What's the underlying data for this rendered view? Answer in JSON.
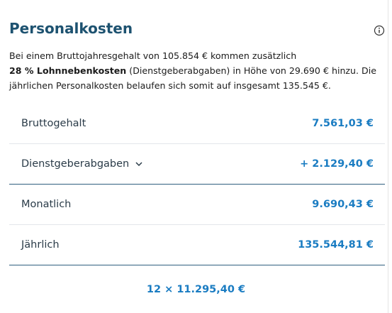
{
  "header": {
    "title": "Personalkosten"
  },
  "intro": {
    "text_before": "Bei einem Bruttojahresgehalt von 105.854 € kommen zusätzlich",
    "bold": "28 % Lohnnebenkosten",
    "text_after": "(Dienstgeberabgaben) in Höhe von 29.690 € hinzu. Die jährlichen Personalkosten belaufen sich somit auf insgesamt 135.545 €."
  },
  "rows": [
    {
      "label": "Bruttogehalt",
      "value": "7.561,03 €"
    },
    {
      "label": "Dienstgeberabgaben",
      "value": "+ 2.129,40 €"
    },
    {
      "label": "Monatlich",
      "value": "9.690,43 €"
    },
    {
      "label": "Jährlich",
      "value": "135.544,81 €"
    }
  ],
  "footer": "12 × 11.295,40 €"
}
